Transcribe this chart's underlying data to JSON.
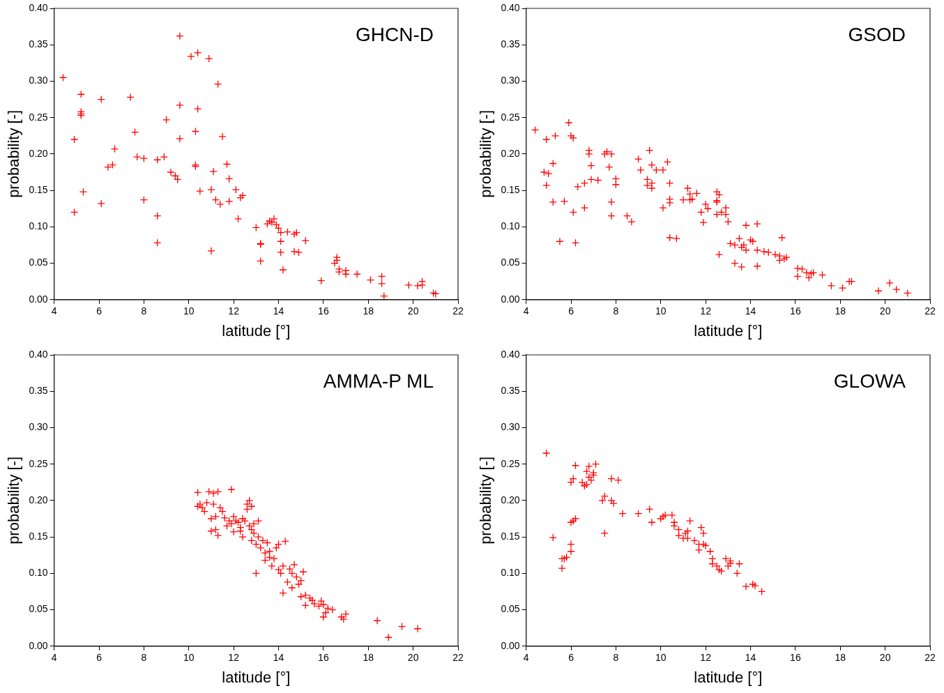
{
  "chart_data": [
    {
      "type": "scatter",
      "annotations": [
        "GHCN-D"
      ],
      "xlabel": "latitude [°]",
      "ylabel": "probability [-]",
      "color": "#ff0000",
      "marker": "cross",
      "xlim": [
        4,
        22
      ],
      "xticks": [
        4,
        6,
        8,
        10,
        12,
        14,
        16,
        18,
        20,
        22
      ],
      "ylim": [
        0,
        0.4
      ],
      "yticks": [
        {
          "value": 0,
          "label": "0.00"
        },
        {
          "value": 0.05,
          "label": "0.05"
        },
        {
          "value": 0.1,
          "label": "0.10"
        },
        {
          "value": 0.15,
          "label": "0.15"
        },
        {
          "value": 0.2,
          "label": "0.20"
        },
        {
          "value": 0.25,
          "label": "0.25"
        },
        {
          "value": 0.3,
          "label": "0.30"
        },
        {
          "value": 0.35,
          "label": "0.35"
        },
        {
          "value": 0.4,
          "label": "0.40"
        }
      ],
      "x": [
        4.4,
        4.9,
        4.9,
        5.2,
        5.2,
        5.2,
        5.2,
        5.3,
        6.1,
        6.1,
        6.4,
        6.6,
        6.7,
        7.4,
        7.6,
        7.7,
        8.0,
        8.0,
        8.6,
        8.6,
        8.6,
        8.9,
        9.0,
        9.2,
        9.4,
        9.5,
        9.6,
        9.6,
        9.6,
        10.1,
        10.3,
        10.3,
        10.3,
        10.4,
        10.4,
        10.5,
        10.9,
        11.0,
        11.0,
        11.1,
        11.2,
        11.3,
        11.4,
        11.5,
        11.7,
        11.8,
        11.8,
        12.1,
        12.2,
        12.3,
        12.4,
        13.0,
        13.2,
        13.2,
        13.2,
        13.5,
        13.6,
        13.7,
        13.8,
        13.9,
        14.0,
        14.1,
        14.1,
        14.1,
        14.2,
        14.4,
        14.7,
        14.7,
        14.8,
        14.9,
        15.2,
        15.9,
        16.5,
        16.6,
        16.6,
        16.7,
        16.7,
        17.0,
        17.0,
        17.5,
        18.1,
        18.6,
        18.6,
        18.7,
        19.8,
        20.2,
        20.4,
        20.4,
        20.9,
        21.0
      ],
      "values": [
        0.305,
        0.22,
        0.12,
        0.282,
        0.258,
        0.253,
        0.255,
        0.148,
        0.275,
        0.132,
        0.182,
        0.185,
        0.207,
        0.278,
        0.23,
        0.196,
        0.194,
        0.137,
        0.192,
        0.115,
        0.078,
        0.196,
        0.247,
        0.175,
        0.17,
        0.165,
        0.362,
        0.267,
        0.221,
        0.334,
        0.231,
        0.185,
        0.183,
        0.339,
        0.262,
        0.149,
        0.331,
        0.151,
        0.067,
        0.176,
        0.137,
        0.296,
        0.131,
        0.224,
        0.186,
        0.135,
        0.166,
        0.151,
        0.111,
        0.14,
        0.143,
        0.099,
        0.077,
        0.076,
        0.053,
        0.104,
        0.108,
        0.106,
        0.111,
        0.103,
        0.098,
        0.08,
        0.092,
        0.065,
        0.041,
        0.093,
        0.09,
        0.066,
        0.092,
        0.065,
        0.081,
        0.026,
        0.05,
        0.054,
        0.058,
        0.042,
        0.038,
        0.04,
        0.035,
        0.035,
        0.027,
        0.032,
        0.022,
        0.005,
        0.02,
        0.019,
        0.025,
        0.02,
        0.009,
        0.008
      ]
    },
    {
      "type": "scatter",
      "annotations": [
        "GSOD"
      ],
      "xlabel": "latitude [°]",
      "ylabel": "probability [-]",
      "color": "#ff0000",
      "marker": "cross",
      "xlim": [
        4,
        22
      ],
      "xticks": [
        4,
        6,
        8,
        10,
        12,
        14,
        16,
        18,
        20,
        22
      ],
      "ylim": [
        0,
        0.4
      ],
      "yticks": [
        {
          "value": 0,
          "label": "0.00"
        },
        {
          "value": 0.05,
          "label": "0.05"
        },
        {
          "value": 0.1,
          "label": "0.10"
        },
        {
          "value": 0.15,
          "label": "0.15"
        },
        {
          "value": 0.2,
          "label": "0.20"
        },
        {
          "value": 0.25,
          "label": "0.25"
        },
        {
          "value": 0.3,
          "label": "0.30"
        },
        {
          "value": 0.35,
          "label": "0.35"
        },
        {
          "value": 0.4,
          "label": "0.40"
        }
      ],
      "x": [
        4.4,
        4.8,
        4.9,
        4.9,
        5.0,
        5.2,
        5.3,
        5.2,
        5.5,
        5.7,
        5.9,
        6.0,
        6.1,
        6.1,
        6.2,
        6.3,
        6.6,
        6.6,
        6.8,
        6.8,
        6.9,
        6.9,
        7.2,
        7.5,
        7.6,
        7.7,
        7.8,
        7.8,
        7.8,
        8.0,
        8.0,
        8.5,
        8.7,
        9.0,
        9.1,
        9.4,
        9.5,
        9.4,
        9.6,
        9.6,
        9.6,
        9.8,
        10.1,
        10.1,
        10.3,
        10.4,
        10.4,
        10.4,
        10.4,
        10.7,
        11.0,
        11.2,
        11.3,
        11.3,
        11.4,
        11.6,
        11.8,
        11.9,
        12.0,
        12.1,
        12.5,
        12.5,
        12.5,
        12.5,
        12.6,
        12.6,
        12.7,
        12.9,
        12.9,
        13.0,
        13.1,
        13.3,
        13.3,
        13.5,
        13.6,
        13.6,
        13.7,
        13.8,
        13.8,
        14.0,
        14.1,
        14.3,
        14.3,
        14.3,
        14.6,
        14.8,
        15.1,
        15.3,
        15.3,
        15.5,
        15.4,
        15.6,
        16.1,
        16.1,
        16.3,
        16.5,
        16.6,
        16.7,
        16.8,
        17.2,
        17.6,
        18.1,
        18.4,
        18.5,
        19.7,
        20.2,
        20.5,
        21.0
      ],
      "values": [
        0.233,
        0.175,
        0.22,
        0.157,
        0.173,
        0.134,
        0.225,
        0.187,
        0.08,
        0.135,
        0.243,
        0.225,
        0.222,
        0.12,
        0.078,
        0.155,
        0.16,
        0.126,
        0.2,
        0.205,
        0.184,
        0.165,
        0.164,
        0.2,
        0.203,
        0.182,
        0.2,
        0.134,
        0.115,
        0.166,
        0.158,
        0.115,
        0.107,
        0.193,
        0.178,
        0.165,
        0.205,
        0.157,
        0.16,
        0.153,
        0.185,
        0.178,
        0.178,
        0.126,
        0.189,
        0.16,
        0.138,
        0.133,
        0.085,
        0.084,
        0.137,
        0.153,
        0.145,
        0.137,
        0.138,
        0.146,
        0.12,
        0.106,
        0.131,
        0.125,
        0.117,
        0.134,
        0.136,
        0.148,
        0.144,
        0.062,
        0.12,
        0.117,
        0.126,
        0.107,
        0.077,
        0.05,
        0.075,
        0.084,
        0.072,
        0.045,
        0.075,
        0.068,
        0.102,
        0.082,
        0.08,
        0.068,
        0.104,
        0.046,
        0.066,
        0.065,
        0.062,
        0.06,
        0.054,
        0.056,
        0.085,
        0.058,
        0.032,
        0.043,
        0.042,
        0.037,
        0.03,
        0.036,
        0.037,
        0.034,
        0.019,
        0.016,
        0.025,
        0.025,
        0.012,
        0.023,
        0.014,
        0.009
      ]
    },
    {
      "type": "scatter",
      "annotations": [
        "AMMA-P ML"
      ],
      "xlabel": "latitude [°]",
      "ylabel": "probability [-]",
      "color": "#ff0000",
      "marker": "cross",
      "xlim": [
        4,
        22
      ],
      "xticks": [
        4,
        6,
        8,
        10,
        12,
        14,
        16,
        18,
        20,
        22
      ],
      "ylim": [
        0,
        0.4
      ],
      "yticks": [
        {
          "value": 0,
          "label": "0.00"
        },
        {
          "value": 0.05,
          "label": "0.05"
        },
        {
          "value": 0.1,
          "label": "0.10"
        },
        {
          "value": 0.15,
          "label": "0.15"
        },
        {
          "value": 0.2,
          "label": "0.20"
        },
        {
          "value": 0.25,
          "label": "0.25"
        },
        {
          "value": 0.3,
          "label": "0.30"
        },
        {
          "value": 0.35,
          "label": "0.35"
        },
        {
          "value": 0.4,
          "label": "0.40"
        }
      ],
      "x": [
        10.4,
        10.4,
        10.5,
        10.6,
        10.7,
        10.8,
        10.9,
        11.0,
        11.0,
        11.1,
        11.1,
        11.2,
        11.2,
        11.3,
        11.3,
        11.4,
        11.5,
        11.6,
        11.7,
        11.8,
        11.9,
        11.9,
        12.0,
        12.0,
        12.1,
        12.2,
        12.3,
        12.3,
        12.4,
        12.4,
        12.5,
        12.6,
        12.6,
        12.7,
        12.7,
        12.8,
        12.8,
        12.8,
        12.9,
        12.9,
        13.0,
        13.0,
        13.1,
        13.1,
        13.2,
        13.3,
        13.4,
        13.4,
        13.5,
        13.6,
        13.6,
        13.7,
        13.8,
        13.9,
        14.0,
        14.0,
        14.1,
        14.2,
        14.2,
        14.3,
        14.4,
        14.5,
        14.6,
        14.6,
        14.7,
        14.8,
        14.9,
        15.0,
        15.0,
        15.1,
        15.2,
        15.2,
        15.4,
        15.5,
        15.6,
        15.8,
        15.9,
        16.0,
        16.0,
        16.1,
        16.2,
        16.4,
        16.8,
        16.9,
        17.0,
        18.4,
        18.9,
        19.5,
        20.2
      ],
      "values": [
        0.211,
        0.192,
        0.195,
        0.19,
        0.185,
        0.197,
        0.212,
        0.175,
        0.158,
        0.21,
        0.195,
        0.178,
        0.16,
        0.152,
        0.212,
        0.19,
        0.185,
        0.176,
        0.165,
        0.172,
        0.215,
        0.168,
        0.157,
        0.178,
        0.172,
        0.17,
        0.163,
        0.158,
        0.175,
        0.15,
        0.172,
        0.195,
        0.188,
        0.2,
        0.165,
        0.192,
        0.16,
        0.145,
        0.168,
        0.155,
        0.14,
        0.1,
        0.172,
        0.15,
        0.135,
        0.145,
        0.128,
        0.118,
        0.142,
        0.122,
        0.13,
        0.11,
        0.12,
        0.135,
        0.105,
        0.14,
        0.1,
        0.073,
        0.11,
        0.144,
        0.088,
        0.106,
        0.1,
        0.08,
        0.112,
        0.095,
        0.085,
        0.09,
        0.068,
        0.102,
        0.07,
        0.056,
        0.066,
        0.063,
        0.058,
        0.055,
        0.062,
        0.057,
        0.04,
        0.046,
        0.052,
        0.05,
        0.04,
        0.037,
        0.044,
        0.035,
        0.012,
        0.027,
        0.024
      ]
    },
    {
      "type": "scatter",
      "annotations": [
        "GLOWA"
      ],
      "xlabel": "latitude [°]",
      "ylabel": "probability [-]",
      "color": "#ff0000",
      "marker": "cross",
      "xlim": [
        4,
        22
      ],
      "xticks": [
        4,
        6,
        8,
        10,
        12,
        14,
        16,
        18,
        20,
        22
      ],
      "ylim": [
        0,
        0.4
      ],
      "yticks": [
        {
          "value": 0,
          "label": "0.00"
        },
        {
          "value": 0.05,
          "label": "0.05"
        },
        {
          "value": 0.1,
          "label": "0.10"
        },
        {
          "value": 0.15,
          "label": "0.15"
        },
        {
          "value": 0.2,
          "label": "0.20"
        },
        {
          "value": 0.25,
          "label": "0.25"
        },
        {
          "value": 0.3,
          "label": "0.30"
        },
        {
          "value": 0.35,
          "label": "0.35"
        },
        {
          "value": 0.4,
          "label": "0.40"
        }
      ],
      "x": [
        4.9,
        5.2,
        5.6,
        5.6,
        5.7,
        5.8,
        6.0,
        6.0,
        6.0,
        6.0,
        6.1,
        6.1,
        6.2,
        6.2,
        6.5,
        6.6,
        6.7,
        6.7,
        6.8,
        6.8,
        6.9,
        7.0,
        7.0,
        7.1,
        7.4,
        7.5,
        7.5,
        7.8,
        7.8,
        7.9,
        8.1,
        8.3,
        9.0,
        9.5,
        9.6,
        10.0,
        10.1,
        10.2,
        10.5,
        10.6,
        10.6,
        10.8,
        10.8,
        11.0,
        11.1,
        11.2,
        11.2,
        11.3,
        11.5,
        11.7,
        11.7,
        11.8,
        11.9,
        11.9,
        12.0,
        12.2,
        12.3,
        12.3,
        12.5,
        12.6,
        12.7,
        12.9,
        13.0,
        13.1,
        13.1,
        13.4,
        13.5,
        13.8,
        14.1,
        14.2,
        14.5
      ],
      "values": [
        0.265,
        0.149,
        0.12,
        0.107,
        0.12,
        0.122,
        0.225,
        0.14,
        0.13,
        0.17,
        0.23,
        0.172,
        0.175,
        0.248,
        0.225,
        0.22,
        0.222,
        0.24,
        0.247,
        0.232,
        0.228,
        0.235,
        0.238,
        0.25,
        0.2,
        0.206,
        0.155,
        0.23,
        0.2,
        0.196,
        0.228,
        0.182,
        0.182,
        0.188,
        0.17,
        0.175,
        0.178,
        0.18,
        0.18,
        0.17,
        0.165,
        0.16,
        0.152,
        0.148,
        0.155,
        0.158,
        0.148,
        0.172,
        0.145,
        0.14,
        0.132,
        0.163,
        0.155,
        0.14,
        0.138,
        0.13,
        0.12,
        0.113,
        0.11,
        0.105,
        0.103,
        0.12,
        0.11,
        0.114,
        0.117,
        0.1,
        0.113,
        0.082,
        0.085,
        0.083,
        0.075
      ]
    }
  ]
}
